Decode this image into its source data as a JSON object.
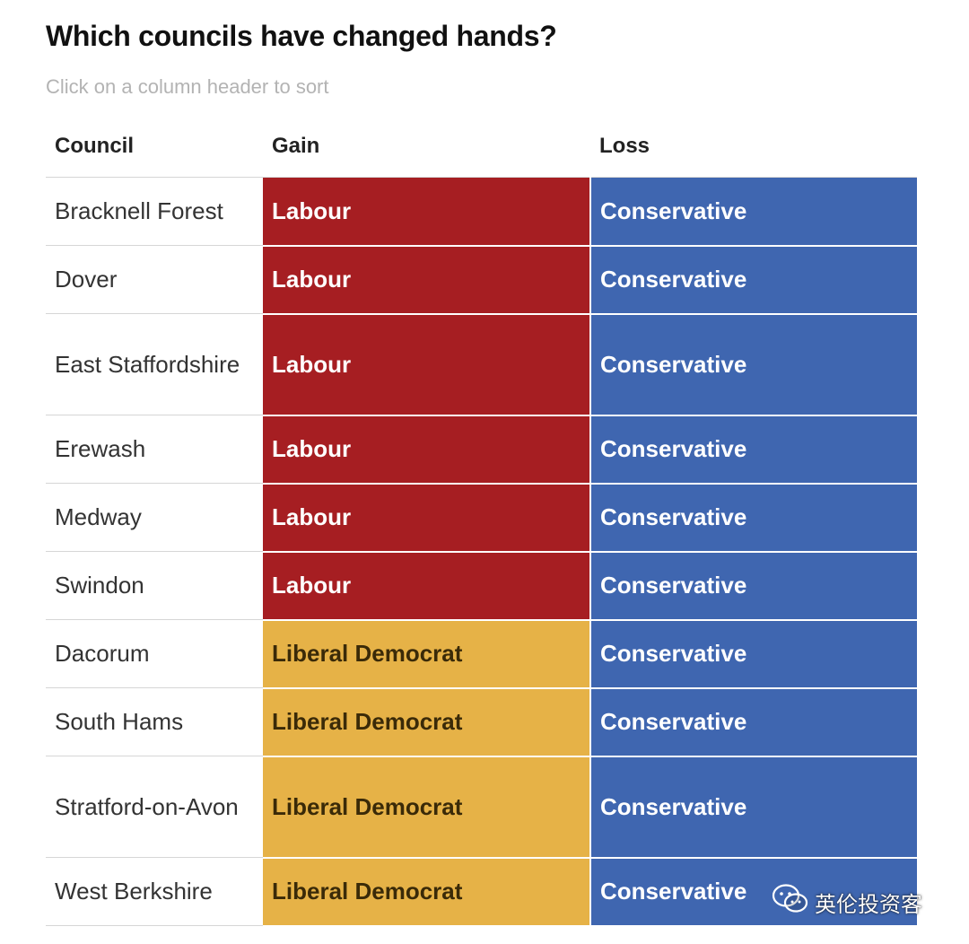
{
  "title": "Which councils have changed hands?",
  "subtitle": "Click on a column header to sort",
  "columns": [
    "Council",
    "Gain",
    "Loss"
  ],
  "party_colors": {
    "Labour": "#a61e22",
    "Liberal Democrat": "#e6b247",
    "Conservative": "#3f66b0"
  },
  "party_text_colors": {
    "Labour": "#ffffff",
    "Liberal Democrat": "#3a2a08",
    "Conservative": "#ffffff"
  },
  "rows": [
    {
      "council": "Bracknell Forest",
      "gain": "Labour",
      "loss": "Conservative"
    },
    {
      "council": "Dover",
      "gain": "Labour",
      "loss": "Conservative"
    },
    {
      "council": "East Staffordshire",
      "gain": "Labour",
      "loss": "Conservative"
    },
    {
      "council": "Erewash",
      "gain": "Labour",
      "loss": "Conservative"
    },
    {
      "council": "Medway",
      "gain": "Labour",
      "loss": "Conservative"
    },
    {
      "council": "Swindon",
      "gain": "Labour",
      "loss": "Conservative"
    },
    {
      "council": "Dacorum",
      "gain": "Liberal Democrat",
      "loss": "Conservative"
    },
    {
      "council": "South Hams",
      "gain": "Liberal Democrat",
      "loss": "Conservative"
    },
    {
      "council": "Stratford-on-Avon",
      "gain": "Liberal Democrat",
      "loss": "Conservative"
    },
    {
      "council": "West Berkshire",
      "gain": "Liberal Democrat",
      "loss": "Conservative"
    }
  ],
  "watermark": {
    "icon": "wechat-icon",
    "text": "英伦投资客"
  }
}
